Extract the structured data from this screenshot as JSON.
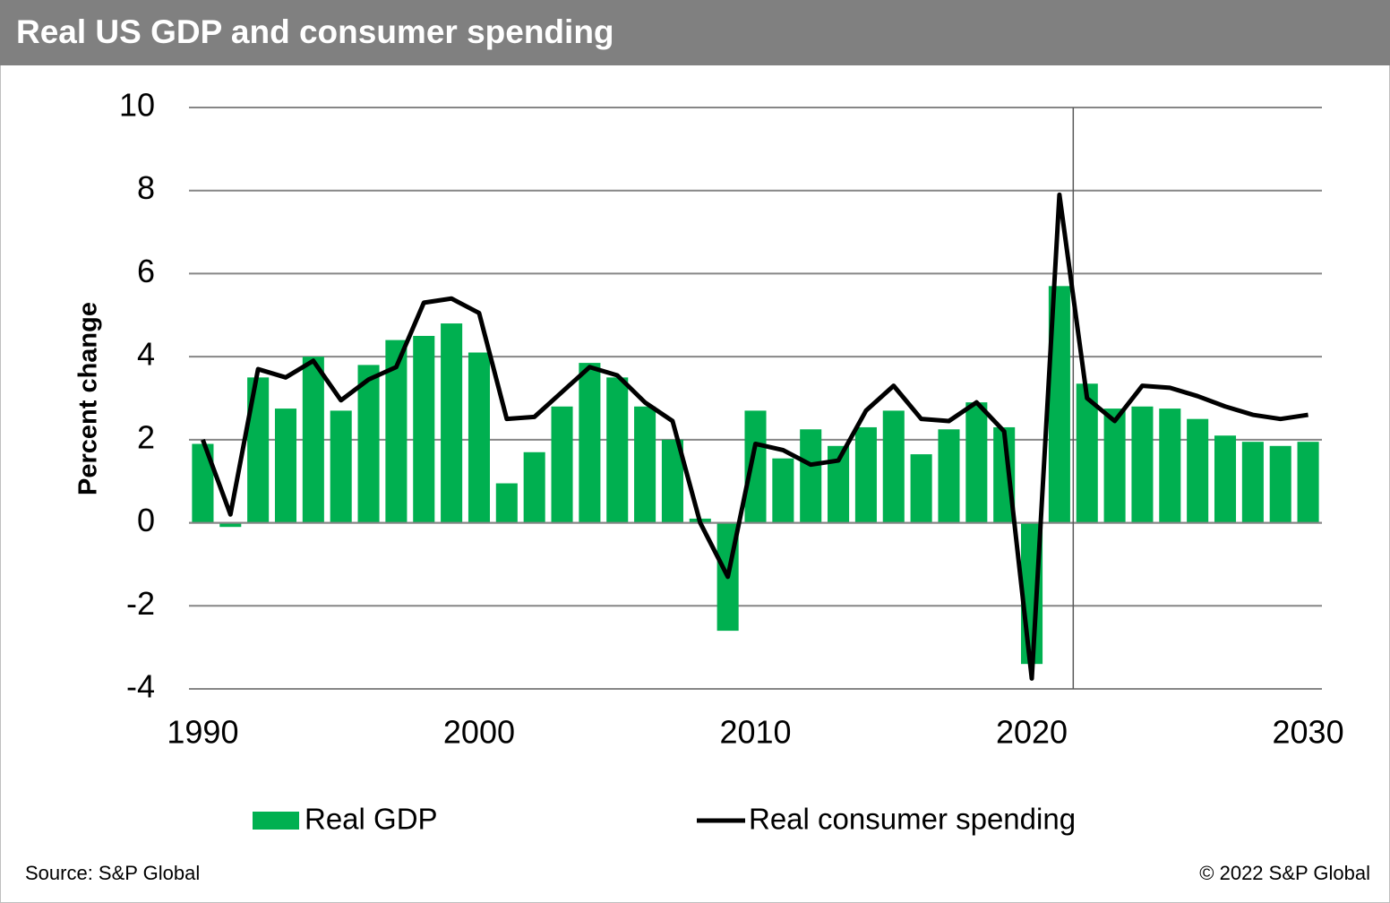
{
  "header": {
    "title": "Real US GDP and consumer spending"
  },
  "chart_data": {
    "type": "bar-line",
    "y_label": "Percent change",
    "x": [
      1990,
      1991,
      1992,
      1993,
      1994,
      1995,
      1996,
      1997,
      1998,
      1999,
      2000,
      2001,
      2002,
      2003,
      2004,
      2005,
      2006,
      2007,
      2008,
      2009,
      2010,
      2011,
      2012,
      2013,
      2014,
      2015,
      2016,
      2017,
      2018,
      2019,
      2020,
      2021,
      2022,
      2023,
      2024,
      2025,
      2026,
      2027,
      2028,
      2029,
      2030
    ],
    "series": [
      {
        "name": "Real GDP",
        "type": "bar",
        "color": "#00b050",
        "values": [
          1.9,
          -0.1,
          3.5,
          2.75,
          4.0,
          2.7,
          3.8,
          4.4,
          4.5,
          4.8,
          4.1,
          0.95,
          1.7,
          2.8,
          3.85,
          3.5,
          2.8,
          2.0,
          0.1,
          -2.6,
          2.7,
          1.55,
          2.25,
          1.85,
          2.3,
          2.7,
          1.65,
          2.25,
          2.9,
          2.3,
          -3.4,
          5.7,
          3.35,
          2.75,
          2.8,
          2.75,
          2.5,
          2.1,
          1.95,
          1.85,
          1.95
        ]
      },
      {
        "name": "Real consumer spending",
        "type": "line",
        "color": "#000000",
        "values": [
          2.0,
          0.2,
          3.7,
          3.5,
          3.9,
          2.95,
          3.45,
          3.75,
          5.3,
          5.4,
          5.05,
          2.5,
          2.55,
          3.15,
          3.75,
          3.55,
          2.9,
          2.45,
          0.0,
          -1.3,
          1.9,
          1.75,
          1.4,
          1.5,
          2.7,
          3.3,
          2.5,
          2.45,
          2.9,
          2.2,
          -3.75,
          7.9,
          3.0,
          2.45,
          3.3,
          3.25,
          3.05,
          2.8,
          2.6,
          2.5,
          2.6
        ]
      }
    ],
    "xlim": [
      1989.5,
      2030.5
    ],
    "xticks": [
      1990,
      2000,
      2010,
      2020,
      2030
    ],
    "ylim": [
      -4,
      10
    ],
    "yticks": [
      -4,
      -2,
      0,
      2,
      4,
      6,
      8,
      10
    ],
    "grid": true,
    "forecast_line_x": 2021.5
  },
  "footer": {
    "source": "Source: S&P Global",
    "copyright": "© 2022 S&P Global"
  }
}
